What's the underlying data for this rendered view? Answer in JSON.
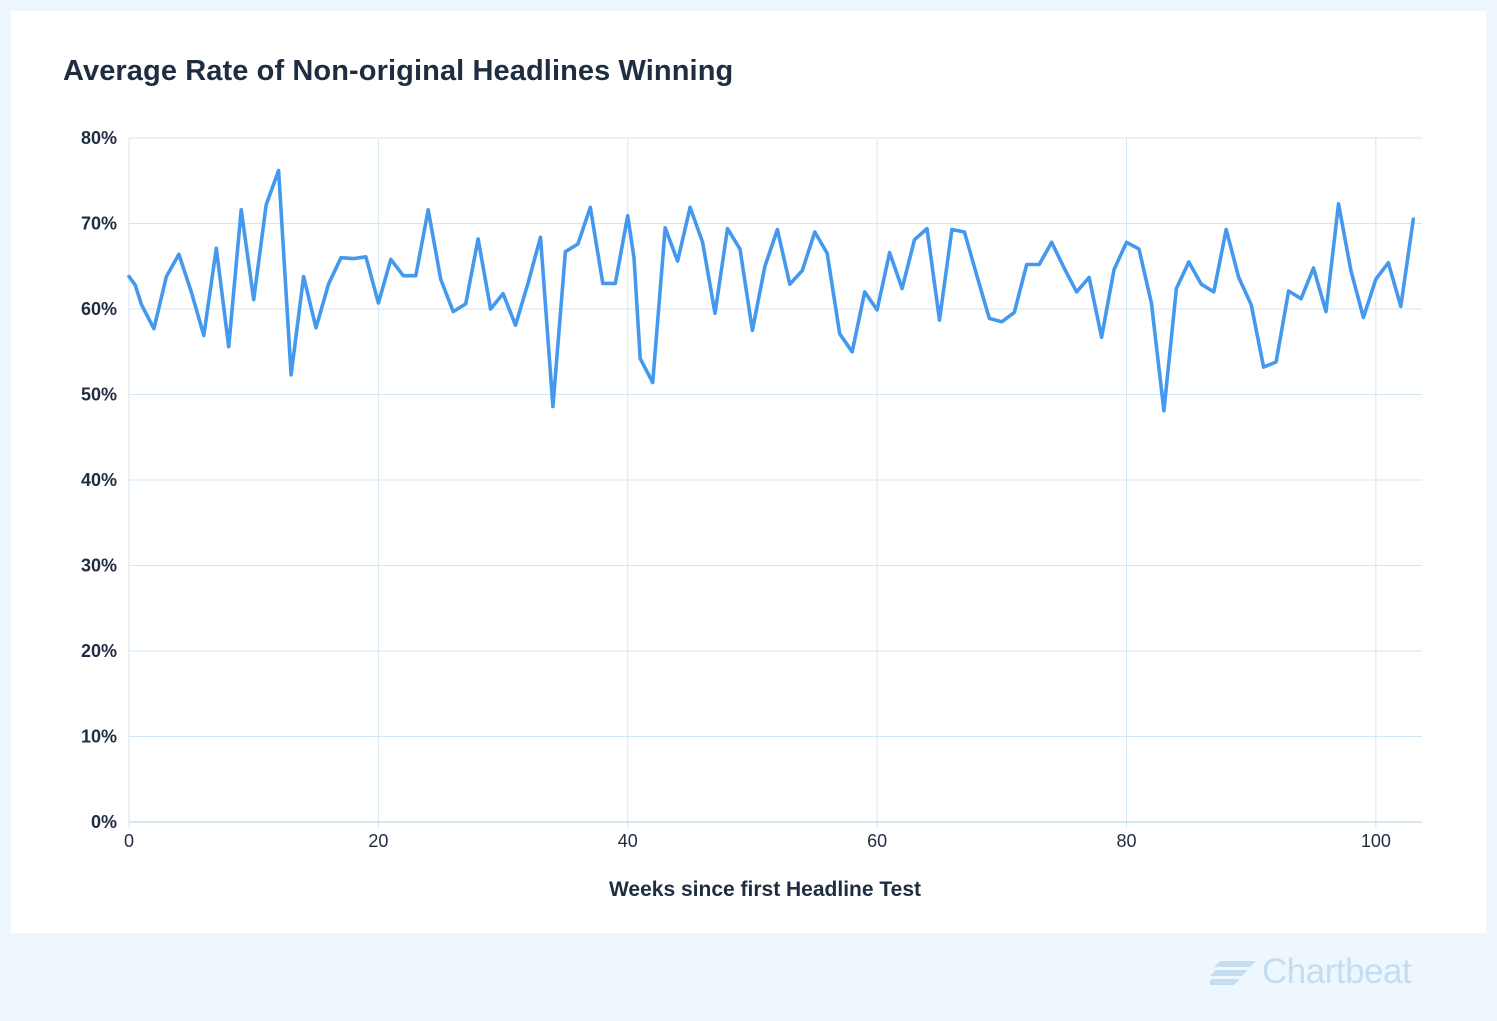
{
  "chart_data": {
    "type": "line",
    "title": "Average Rate of Non-original Headlines Winning",
    "xlabel": "Weeks since first Headline Test",
    "ylabel": "",
    "xlim": [
      0,
      103.7
    ],
    "ylim": [
      0,
      80
    ],
    "x_ticks": [
      0,
      20,
      40,
      60,
      80,
      100
    ],
    "y_ticks": [
      0,
      10,
      20,
      30,
      40,
      50,
      60,
      70,
      80
    ],
    "y_tick_labels": [
      "0%",
      "10%",
      "20%",
      "30%",
      "40%",
      "50%",
      "60%",
      "70%",
      "80%"
    ],
    "grid": true,
    "series_color": "#4499ee",
    "series": [
      {
        "name": "",
        "x": [
          0,
          0.5,
          1,
          2,
          3,
          4,
          5,
          6,
          7,
          8,
          9,
          10,
          11,
          12,
          13,
          14,
          15,
          16,
          17,
          18,
          19,
          20,
          21,
          22,
          23,
          24,
          25,
          26,
          27,
          28,
          29,
          30,
          31,
          32,
          33,
          34,
          35,
          36,
          37,
          38,
          39,
          40,
          40.5,
          41,
          42,
          43,
          44,
          45,
          46,
          47,
          48,
          49,
          50,
          51,
          52,
          53,
          54,
          55,
          56,
          57,
          58,
          59,
          60,
          61,
          62,
          63,
          64,
          65,
          66,
          67,
          68,
          69,
          70,
          71,
          72,
          73,
          74,
          75,
          76,
          77,
          78,
          79,
          80,
          81,
          82,
          83,
          84,
          85,
          86,
          87,
          88,
          89,
          90,
          91,
          92,
          93,
          94,
          95,
          96,
          97,
          98,
          99,
          100,
          101,
          102,
          103
        ],
        "values": [
          63.8,
          62.8,
          60.5,
          57.7,
          63.8,
          66.4,
          62.0,
          56.9,
          67.1,
          55.6,
          71.6,
          61.1,
          72.2,
          76.2,
          52.3,
          63.8,
          57.8,
          62.9,
          66.0,
          65.9,
          66.1,
          60.7,
          65.8,
          63.9,
          63.9,
          71.6,
          63.5,
          59.7,
          60.6,
          68.2,
          60.0,
          61.8,
          58.1,
          63.0,
          68.4,
          48.6,
          66.7,
          67.6,
          71.9,
          63.0,
          63.0,
          70.9,
          66.0,
          54.2,
          51.4,
          69.5,
          65.6,
          71.9,
          67.8,
          59.5,
          69.4,
          67.0,
          57.5,
          65.0,
          69.3,
          62.9,
          64.5,
          69.0,
          66.5,
          57.1,
          55.0,
          62.0,
          59.9,
          66.6,
          62.4,
          68.1,
          69.4,
          58.7,
          69.3,
          69.0,
          63.9,
          58.9,
          58.5,
          59.6,
          65.2,
          65.2,
          67.8,
          64.8,
          62.0,
          63.7,
          56.7,
          64.6,
          67.8,
          67.0,
          60.7,
          48.1,
          62.4,
          65.5,
          62.9,
          62.0,
          69.3,
          63.7,
          60.5,
          53.2,
          53.8,
          62.1,
          61.2,
          64.8,
          59.7,
          72.3,
          64.5,
          59.0,
          63.5,
          65.4,
          60.3,
          70.5
        ]
      }
    ]
  },
  "brand": {
    "name": "Chartbeat",
    "color": "#c3def3"
  }
}
